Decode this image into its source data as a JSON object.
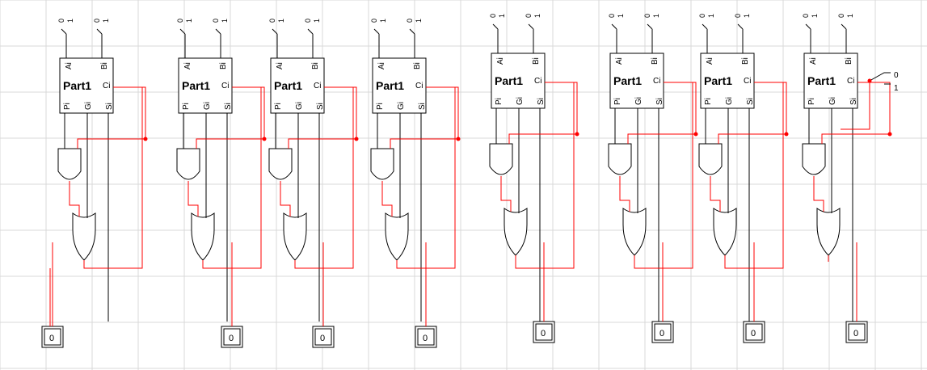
{
  "part_label": "Part1",
  "pins": {
    "a": "Ai",
    "b": "Bi",
    "c": "Ci",
    "p": "Pi",
    "g": "Gi",
    "s": "Si"
  },
  "switch_low": "0",
  "switch_high": "1",
  "carry_switch": {
    "low": "0",
    "high": "1"
  },
  "stages": [
    {
      "output": "0"
    },
    {
      "output": "0"
    },
    {
      "output": "0"
    },
    {
      "output": "0"
    },
    {
      "output": "0"
    },
    {
      "output": "0"
    },
    {
      "output": "0"
    },
    {
      "output": "0"
    }
  ],
  "first_carry_output": "0",
  "colors": {
    "wire": "#ff0000",
    "line": "#000000",
    "grid": "#d8d8d8",
    "dark_wire": "#800000"
  }
}
